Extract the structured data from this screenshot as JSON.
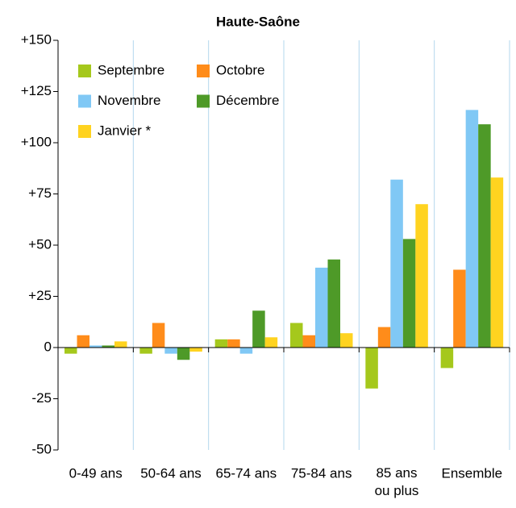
{
  "chart_data": {
    "type": "bar",
    "title": "Haute-Saône",
    "categories": [
      "0-49 ans",
      "50-64 ans",
      "65-74 ans",
      "75-84 ans",
      "85 ans\nou plus",
      "Ensemble"
    ],
    "series": [
      {
        "name": "Septembre",
        "color": "#a5c81c",
        "values": [
          -3,
          -3,
          4,
          12,
          -20,
          -10
        ]
      },
      {
        "name": "Octobre",
        "color": "#ff8c1a",
        "values": [
          6,
          12,
          4,
          6,
          10,
          38
        ]
      },
      {
        "name": "Novembre",
        "color": "#80c8f5",
        "values": [
          1,
          -3,
          -3,
          39,
          82,
          116
        ]
      },
      {
        "name": "Décembre",
        "color": "#4e9a28",
        "values": [
          1,
          -6,
          18,
          43,
          53,
          109
        ]
      },
      {
        "name": "Janvier *",
        "color": "#ffd320",
        "values": [
          3,
          -2,
          5,
          7,
          70,
          83
        ]
      }
    ],
    "ylim": [
      -50,
      150
    ],
    "yticks": [
      {
        "value": 150,
        "label": "+150"
      },
      {
        "value": 125,
        "label": "+125"
      },
      {
        "value": 100,
        "label": "+100"
      },
      {
        "value": 75,
        "label": "+75"
      },
      {
        "value": 50,
        "label": "+50"
      },
      {
        "value": 25,
        "label": "+25"
      },
      0,
      -25,
      -50
    ],
    "legend": "top-left"
  }
}
